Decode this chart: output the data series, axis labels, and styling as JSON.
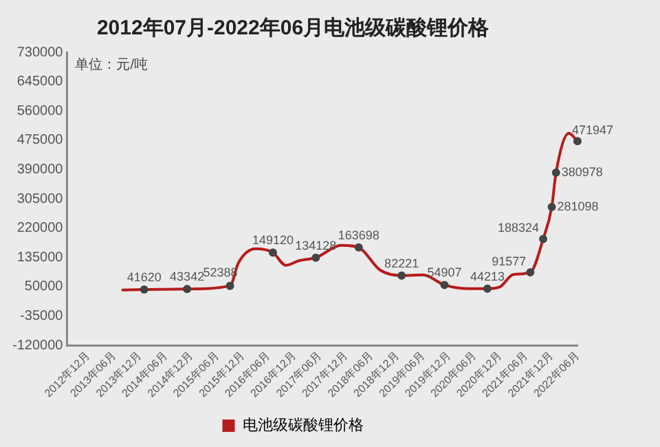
{
  "chart_data": {
    "type": "line",
    "title": "2012年07月-2022年06月电池级碳酸锂价格",
    "annotations": [
      "单位：元/吨"
    ],
    "x": [
      "2013-08",
      "2014-01",
      "2014-11",
      "2015-09",
      "2015-11",
      "2016-03",
      "2016-07",
      "2016-10",
      "2017-01",
      "2017-05",
      "2017-11",
      "2018-03",
      "2018-08",
      "2019-01",
      "2019-06",
      "2019-11",
      "2020-05",
      "2020-09",
      "2020-12",
      "2021-03",
      "2021-07",
      "2021-10",
      "2021-12",
      "2022-01",
      "2022-04",
      "2022-06"
    ],
    "series": [
      {
        "name": "电池级碳酸锂价格",
        "color": "#b71c1c",
        "values": [
          40000,
          41620,
          43342,
          52388,
          120000,
          160000,
          149120,
          112000,
          125000,
          134128,
          170000,
          163698,
          98000,
          82221,
          84000,
          54907,
          44000,
          44213,
          50000,
          85000,
          91577,
          188324,
          281098,
          380978,
          495000,
          471947
        ],
        "value_labels": [
          null,
          "41620",
          "43342",
          "52388",
          null,
          null,
          "149120",
          null,
          null,
          "134128",
          null,
          "163698",
          null,
          "82221",
          null,
          "54907",
          null,
          "44213",
          null,
          null,
          "91577",
          "188324",
          "281098",
          "380978",
          null,
          "471947"
        ]
      }
    ],
    "xlim": [
      "2012-07",
      "2022-06"
    ],
    "xticks": [
      {
        "value": "2012-12",
        "label": "2012年12月"
      },
      {
        "value": "2013-06",
        "label": "2013年06月"
      },
      {
        "value": "2013-12",
        "label": "2013年12月"
      },
      {
        "value": "2014-06",
        "label": "2014年06月"
      },
      {
        "value": "2014-12",
        "label": "2014年12月"
      },
      {
        "value": "2015-06",
        "label": "2015年06月"
      },
      {
        "value": "2015-12",
        "label": "2015年12月"
      },
      {
        "value": "2016-06",
        "label": "2016年06月"
      },
      {
        "value": "2016-12",
        "label": "2016年12月"
      },
      {
        "value": "2017-06",
        "label": "2017年06月"
      },
      {
        "value": "2017-12",
        "label": "2017年12月"
      },
      {
        "value": "2018-06",
        "label": "2018年06月"
      },
      {
        "value": "2018-12",
        "label": "2018年12月"
      },
      {
        "value": "2019-06",
        "label": "2019年06月"
      },
      {
        "value": "2019-12",
        "label": "2019年12月"
      },
      {
        "value": "2020-06",
        "label": "2020年06月"
      },
      {
        "value": "2020-12",
        "label": "2020年12月"
      },
      {
        "value": "2021-06",
        "label": "2021年06月"
      },
      {
        "value": "2021-12",
        "label": "2021年12月"
      },
      {
        "value": "2022-06",
        "label": "2022年06月"
      }
    ],
    "ylim": [
      -120000,
      730000
    ],
    "yticks": [
      -120000,
      -35000,
      50000,
      135000,
      220000,
      305000,
      390000,
      475000,
      560000,
      645000,
      730000
    ],
    "grid": false,
    "legend": "bottom",
    "marker": "circle",
    "line_style": "solid"
  }
}
